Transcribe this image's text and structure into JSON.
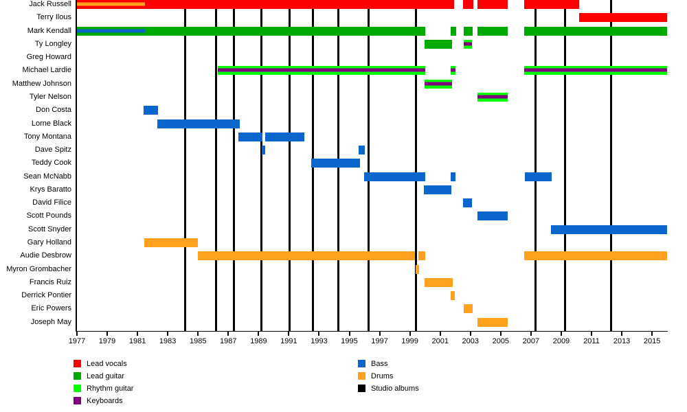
{
  "chart_data": {
    "type": "timeline",
    "title": "",
    "x_axis": {
      "start": 1977,
      "end": 2016.03,
      "tick_step": 2,
      "ticks": [
        1977,
        1979,
        1981,
        1983,
        1985,
        1987,
        1989,
        1991,
        1993,
        1995,
        1997,
        1999,
        2001,
        2003,
        2005,
        2007,
        2009,
        2011,
        2013,
        2015
      ]
    },
    "role_colors": {
      "vocals": "#fa0000",
      "lead_guitar": "#00aa00",
      "rhythm_guitar": "#00ff00",
      "keyboards": "#800080",
      "bass": "#0a66cc",
      "drums": "#ffa01e",
      "album": "#000000"
    },
    "legend": [
      {
        "label": "Lead vocals",
        "color": "#fa0000"
      },
      {
        "label": "Lead guitar",
        "color": "#00aa00"
      },
      {
        "label": "Rhythm guitar",
        "color": "#00ff00"
      },
      {
        "label": "Keyboards",
        "color": "#800080"
      },
      {
        "label": "Bass",
        "color": "#0a66cc"
      },
      {
        "label": "Drums",
        "color": "#ffa01e"
      },
      {
        "label": "Studio albums",
        "color": "#000000"
      }
    ],
    "album_years": [
      1984.17,
      1986.21,
      1987.39,
      1989.21,
      1991.07,
      1992.61,
      1994.29,
      1996.25,
      1999.42,
      2007.32,
      2009.23,
      2012.31
    ],
    "members": [
      {
        "name": "Jack Russell",
        "segments": [
          {
            "s": 1977.0,
            "e": 1981.49,
            "roles": [
              "vocals",
              "drums"
            ]
          },
          {
            "s": 1981.49,
            "e": 2001.92,
            "roles": [
              "vocals"
            ]
          },
          {
            "s": 2002.51,
            "e": 2003.19,
            "roles": [
              "vocals"
            ]
          },
          {
            "s": 2003.46,
            "e": 2005.46,
            "roles": [
              "vocals"
            ]
          },
          {
            "s": 2006.55,
            "e": 2010.18,
            "roles": [
              "vocals"
            ]
          }
        ]
      },
      {
        "name": "Terry Ilous",
        "segments": [
          {
            "s": 2010.18,
            "e": 2016.0,
            "roles": [
              "vocals"
            ]
          }
        ]
      },
      {
        "name": "Mark Kendall",
        "segments": [
          {
            "s": 1977.0,
            "e": 1981.49,
            "roles": [
              "lead_guitar",
              "bass"
            ]
          },
          {
            "s": 1981.49,
            "e": 2000.01,
            "roles": [
              "lead_guitar"
            ]
          },
          {
            "s": 2001.69,
            "e": 2002.05,
            "roles": [
              "lead_guitar"
            ]
          },
          {
            "s": 2002.55,
            "e": 2003.14,
            "roles": [
              "lead_guitar"
            ]
          },
          {
            "s": 2003.46,
            "e": 2005.46,
            "roles": [
              "lead_guitar"
            ]
          },
          {
            "s": 2006.55,
            "e": 2016.0,
            "roles": [
              "lead_guitar"
            ]
          }
        ]
      },
      {
        "name": "Ty Longley",
        "segments": [
          {
            "s": 1999.97,
            "e": 2001.78,
            "roles": [
              "lead_guitar"
            ]
          },
          {
            "s": 2002.55,
            "e": 2003.1,
            "roles": [
              "rhythm_guitar",
              "keyboards"
            ]
          }
        ]
      },
      {
        "name": "Greg Howard",
        "segments": []
      },
      {
        "name": "Michael Lardie",
        "segments": [
          {
            "s": 1986.3,
            "e": 2000.01,
            "roles": [
              "rhythm_guitar",
              "keyboards"
            ]
          },
          {
            "s": 2001.69,
            "e": 2002.01,
            "roles": [
              "rhythm_guitar",
              "keyboards"
            ]
          },
          {
            "s": 2006.55,
            "e": 2016.0,
            "roles": [
              "rhythm_guitar",
              "keyboards"
            ]
          }
        ]
      },
      {
        "name": "Matthew Johnson",
        "segments": [
          {
            "s": 1999.97,
            "e": 2001.78,
            "roles": [
              "rhythm_guitar",
              "keyboards"
            ]
          }
        ]
      },
      {
        "name": "Tyler Nelson",
        "segments": [
          {
            "s": 2003.46,
            "e": 2005.46,
            "roles": [
              "rhythm_guitar",
              "keyboards"
            ]
          }
        ]
      },
      {
        "name": "Don Costa",
        "segments": [
          {
            "s": 1981.4,
            "e": 1982.36,
            "roles": [
              "bass"
            ]
          }
        ]
      },
      {
        "name": "Lorne Black",
        "segments": [
          {
            "s": 1982.31,
            "e": 1987.76,
            "roles": [
              "bass"
            ]
          }
        ]
      },
      {
        "name": "Tony Montana",
        "segments": [
          {
            "s": 1987.67,
            "e": 1989.26,
            "roles": [
              "bass"
            ]
          },
          {
            "s": 1989.44,
            "e": 1992.02,
            "roles": [
              "bass"
            ]
          }
        ]
      },
      {
        "name": "Dave Spitz",
        "segments": [
          {
            "s": 1989.21,
            "e": 1989.44,
            "roles": [
              "bass"
            ]
          },
          {
            "s": 1995.61,
            "e": 1996.02,
            "roles": [
              "bass"
            ]
          }
        ]
      },
      {
        "name": "Teddy Cook",
        "segments": [
          {
            "s": 1992.48,
            "e": 1995.7,
            "roles": [
              "bass"
            ]
          }
        ]
      },
      {
        "name": "Sean McNabb",
        "segments": [
          {
            "s": 1995.97,
            "e": 2000.01,
            "roles": [
              "bass"
            ]
          },
          {
            "s": 2001.69,
            "e": 2002.01,
            "roles": [
              "bass"
            ]
          },
          {
            "s": 2006.59,
            "e": 2008.36,
            "roles": [
              "bass"
            ]
          }
        ]
      },
      {
        "name": "Krys Baratto",
        "segments": [
          {
            "s": 1999.92,
            "e": 2001.74,
            "roles": [
              "bass"
            ]
          }
        ]
      },
      {
        "name": "David Filice",
        "segments": [
          {
            "s": 2002.51,
            "e": 2003.1,
            "roles": [
              "bass"
            ]
          }
        ]
      },
      {
        "name": "Scott Pounds",
        "segments": [
          {
            "s": 2003.46,
            "e": 2005.46,
            "roles": [
              "bass"
            ]
          }
        ]
      },
      {
        "name": "Scott Snyder",
        "segments": [
          {
            "s": 2008.32,
            "e": 2016.0,
            "roles": [
              "bass"
            ]
          }
        ]
      },
      {
        "name": "Gary Holland",
        "segments": [
          {
            "s": 1981.45,
            "e": 1984.99,
            "roles": [
              "drums"
            ]
          }
        ]
      },
      {
        "name": "Audie Desbrow",
        "segments": [
          {
            "s": 1984.99,
            "e": 1999.33,
            "roles": [
              "drums"
            ]
          },
          {
            "s": 1999.56,
            "e": 2000.01,
            "roles": [
              "drums"
            ]
          },
          {
            "s": 2006.55,
            "e": 2016.0,
            "roles": [
              "drums"
            ]
          }
        ]
      },
      {
        "name": "Myron Grombacher",
        "segments": [
          {
            "s": 1999.38,
            "e": 1999.6,
            "roles": [
              "drums"
            ]
          }
        ]
      },
      {
        "name": "Francis Ruiz",
        "segments": [
          {
            "s": 1999.97,
            "e": 2001.83,
            "roles": [
              "drums"
            ]
          }
        ]
      },
      {
        "name": "Derrick Pontier",
        "segments": [
          {
            "s": 2001.69,
            "e": 2001.96,
            "roles": [
              "drums"
            ]
          }
        ]
      },
      {
        "name": "Eric Powers",
        "segments": [
          {
            "s": 2002.55,
            "e": 2003.14,
            "roles": [
              "drums"
            ]
          }
        ]
      },
      {
        "name": "Joseph May",
        "segments": [
          {
            "s": 2003.46,
            "e": 2005.46,
            "roles": [
              "drums"
            ]
          }
        ]
      }
    ]
  }
}
